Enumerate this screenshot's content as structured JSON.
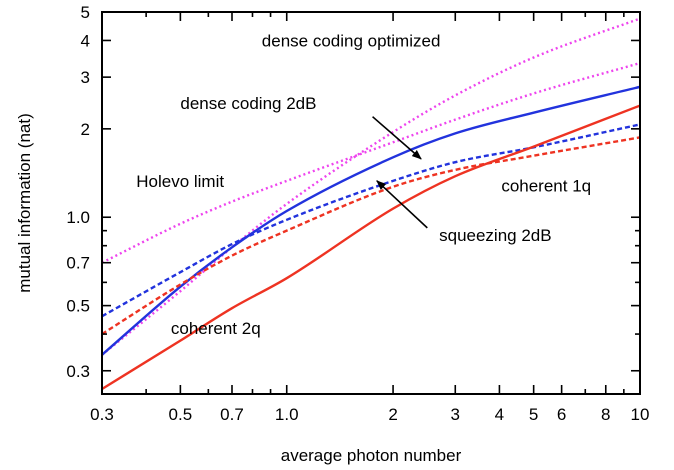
{
  "chart_data": {
    "type": "line",
    "title": "",
    "xlabel": "average photon number",
    "ylabel": "mutual information (nat)",
    "xscale": "log",
    "yscale": "log",
    "xlim": [
      0.3,
      10
    ],
    "ylim": [
      0.25,
      5
    ],
    "grid": false,
    "legend": "none",
    "xticks": [
      {
        "value": 0.3,
        "label": "0.3"
      },
      {
        "value": 0.5,
        "label": "0.5"
      },
      {
        "value": 0.7,
        "label": "0.7"
      },
      {
        "value": 1.0,
        "label": "1.0"
      },
      {
        "value": 2,
        "label": "2"
      },
      {
        "value": 3,
        "label": "3"
      },
      {
        "value": 4,
        "label": "4"
      },
      {
        "value": 5,
        "label": "5"
      },
      {
        "value": 6,
        "label": "6"
      },
      {
        "value": 8,
        "label": "8"
      },
      {
        "value": 10,
        "label": "10"
      }
    ],
    "xminor": [
      0.4,
      0.6,
      0.8,
      0.9,
      7,
      9
    ],
    "yticks": [
      {
        "value": 0.3,
        "label": "0.3"
      },
      {
        "value": 0.5,
        "label": "0.5"
      },
      {
        "value": 0.7,
        "label": "0.7"
      },
      {
        "value": 1.0,
        "label": "1.0"
      },
      {
        "value": 2,
        "label": "2"
      },
      {
        "value": 3,
        "label": "3"
      },
      {
        "value": 4,
        "label": "4"
      },
      {
        "value": 5,
        "label": "5"
      }
    ],
    "yminor": [
      0.4,
      0.6,
      0.8,
      0.9
    ],
    "series": [
      {
        "key": "holevo",
        "color": "#ee44ee",
        "dash": "dot",
        "x": [
          0.3,
          0.5,
          0.7,
          1.0,
          2,
          3,
          5,
          10
        ],
        "y": [
          0.7,
          0.95,
          1.13,
          1.33,
          1.8,
          2.15,
          2.64,
          3.35
        ]
      },
      {
        "key": "dense_opt",
        "color": "#ee44ee",
        "dash": "dot",
        "x": [
          0.3,
          0.5,
          0.7,
          1.0,
          2,
          3,
          5,
          10
        ],
        "y": [
          0.34,
          0.56,
          0.79,
          1.11,
          1.95,
          2.6,
          3.5,
          4.75
        ]
      },
      {
        "key": "dense_2db",
        "color": "#2233dd",
        "dash": "solid",
        "x": [
          0.3,
          0.5,
          0.7,
          1.0,
          2,
          3,
          5,
          10
        ],
        "y": [
          0.34,
          0.58,
          0.79,
          1.05,
          1.6,
          1.93,
          2.27,
          2.78
        ]
      },
      {
        "key": "squeezing_2db",
        "color": "#2233dd",
        "dash": "dash",
        "x": [
          0.3,
          0.5,
          0.7,
          1.0,
          2,
          3,
          5,
          10
        ],
        "y": [
          0.46,
          0.65,
          0.81,
          0.98,
          1.33,
          1.54,
          1.73,
          2.07
        ]
      },
      {
        "key": "coherent_1q",
        "color": "#ee3322",
        "dash": "dash",
        "x": [
          0.3,
          0.5,
          0.7,
          1.0,
          2,
          3,
          5,
          10
        ],
        "y": [
          0.4,
          0.59,
          0.74,
          0.9,
          1.27,
          1.45,
          1.62,
          1.87
        ]
      },
      {
        "key": "coherent_2q",
        "color": "#ee3322",
        "dash": "solid",
        "x": [
          0.3,
          0.5,
          0.7,
          1.0,
          2,
          3,
          5,
          10
        ],
        "y": [
          0.26,
          0.38,
          0.49,
          0.62,
          1.07,
          1.38,
          1.74,
          2.4
        ]
      }
    ],
    "annotations": [
      {
        "text": "dense coding optimized",
        "x": 0.85,
        "y": 4.0
      },
      {
        "text": "dense coding 2dB",
        "x": 0.5,
        "y": 2.45
      },
      {
        "text": "Holevo limit",
        "x": 0.375,
        "y": 1.33
      },
      {
        "text": "coherent 1q",
        "x": 4.05,
        "y": 1.28
      },
      {
        "text": "squeezing 2dB",
        "x": 2.7,
        "y": 0.87
      },
      {
        "text": "coherent 2q",
        "x": 0.47,
        "y": 0.42
      }
    ],
    "arrows": [
      {
        "from_x": 1.75,
        "from_y": 2.2,
        "to_x": 2.4,
        "to_y": 1.58
      },
      {
        "from_x": 2.5,
        "from_y": 0.92,
        "to_x": 1.8,
        "to_y": 1.33
      }
    ]
  }
}
